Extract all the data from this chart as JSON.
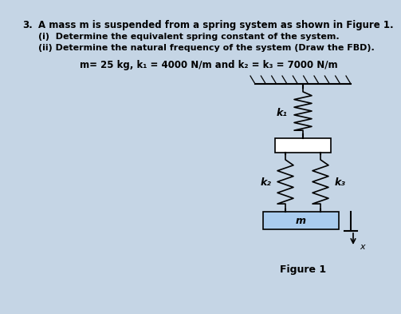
{
  "bg_color": "#c5d5e5",
  "title_num": "3.",
  "title_text": "A mass m is suspended from a spring system as shown in Figure 1.",
  "sub1": "(i)  Determine the equivalent spring constant of the system.",
  "sub2": "(ii) Determine the natural frequency of the system (Draw the FBD).",
  "params": "m= 25 kg, k₁ = 4000 N/m and k₂ = k₃ = 7000 N/m",
  "fig_label": "Figure 1",
  "mass_label": "m",
  "k1_label": "k₁",
  "k2_label": "k₂",
  "k3_label": "k₃",
  "x_label": "x",
  "mass_color": "#aaccee"
}
